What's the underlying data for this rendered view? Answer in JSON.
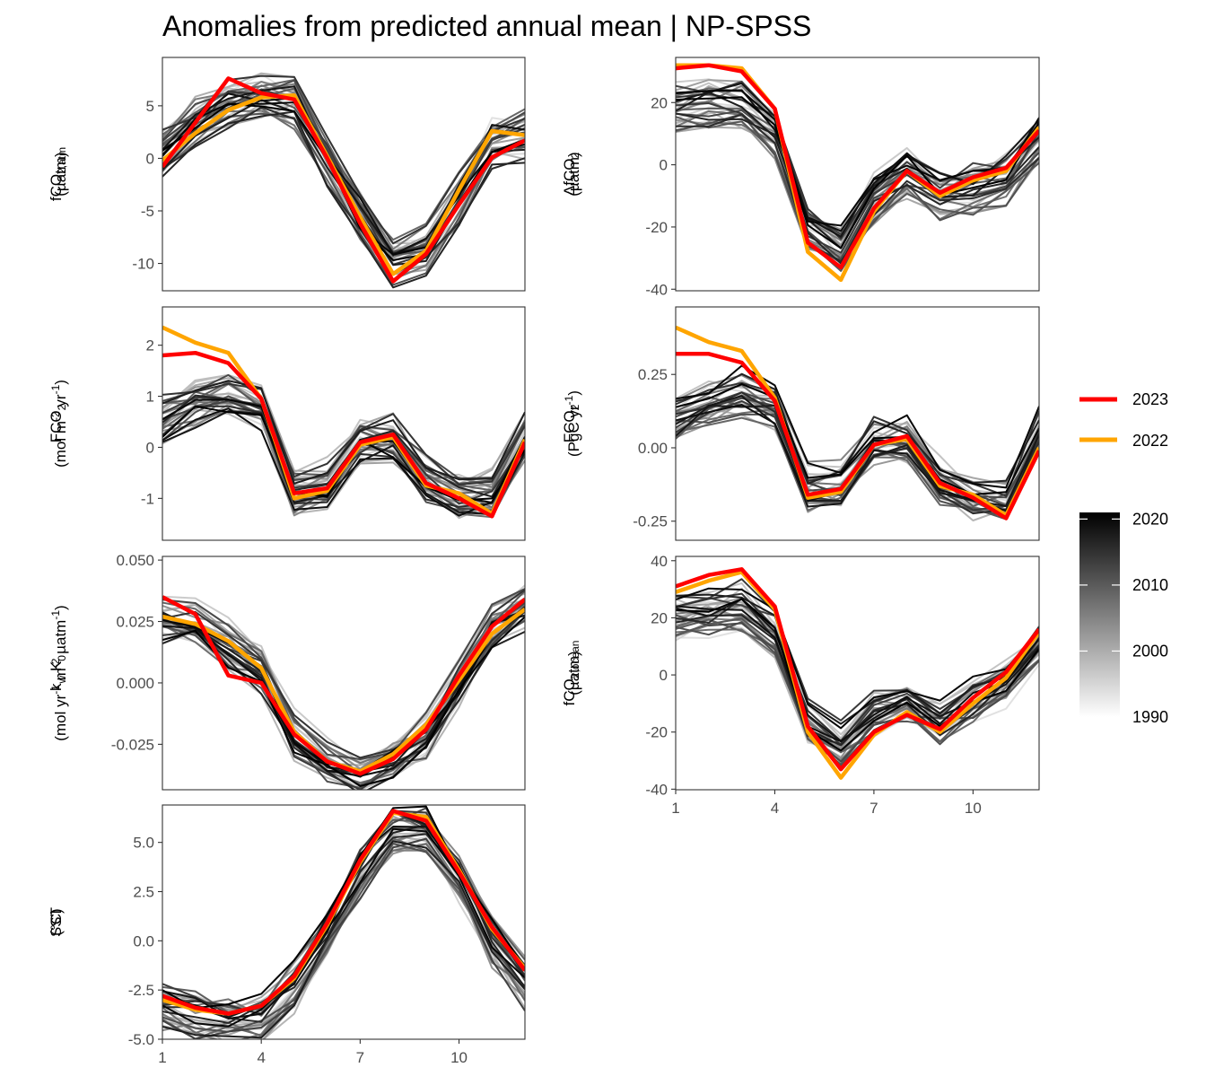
{
  "title": "Anomalies from predicted annual mean | NP-SPSS",
  "colors": {
    "y2023": "#ff0000",
    "y2022": "#ffa500",
    "gradient_dark": "#000000",
    "gradient_light": "#ffffff"
  },
  "legend_years": {
    "label_2023": "2023",
    "label_2022": "2022"
  },
  "colorbar": {
    "labels": [
      "2020",
      "2010",
      "2000",
      "1990"
    ],
    "range": [
      1990,
      2021
    ]
  },
  "chart_data": [
    {
      "id": "fco2atm",
      "type": "line",
      "ylabel": "fCO2,atm (µatm)",
      "ylabel_parts": {
        "line1_main": "fCO",
        "line1_sub": "2,atm",
        "line2": "(µatm)"
      },
      "x": [
        1,
        2,
        3,
        4,
        5,
        6,
        7,
        8,
        9,
        10,
        11,
        12
      ],
      "xticks": [
        "1",
        "4",
        "7",
        "10"
      ],
      "xlim": [
        1,
        12
      ],
      "yticks": [
        "5",
        "0",
        "-5",
        "-10"
      ],
      "ytick_values": [
        5,
        0,
        -5,
        -10
      ],
      "ylim": [
        -12.6,
        9.6
      ],
      "base": [
        0.6,
        3.2,
        5.1,
        5.8,
        5.4,
        0.0,
        -5.3,
        -9.6,
        -8.6,
        -3.8,
        1.6,
        2.2
      ],
      "y2023": [
        -0.8,
        3.4,
        7.6,
        6.2,
        5.6,
        0.0,
        -6.2,
        -11.7,
        -9.1,
        -4.4,
        0.1,
        1.7
      ],
      "y2022": [
        -0.2,
        2.4,
        4.6,
        5.8,
        6.0,
        0.2,
        -5.6,
        -11.0,
        -8.8,
        -3.0,
        2.6,
        2.2
      ]
    },
    {
      "id": "dfco2",
      "type": "line",
      "ylabel": "ΔfCO2 (µatm)",
      "ylabel_parts": {
        "line1_main": "ΔfCO",
        "line1_sub": "2",
        "line2": "(µatm)"
      },
      "x": [
        1,
        2,
        3,
        4,
        5,
        6,
        7,
        8,
        9,
        10,
        11,
        12
      ],
      "xticks": [
        "1",
        "4",
        "7",
        "10"
      ],
      "xlim": [
        1,
        12
      ],
      "yticks": [
        "20",
        "0",
        "-20",
        "-40"
      ],
      "ytick_values": [
        20,
        0,
        -20,
        -40
      ],
      "ylim": [
        -40.5,
        34.5
      ],
      "base": [
        18,
        20,
        19,
        10,
        -20,
        -27,
        -11,
        -3,
        -10,
        -8,
        -5,
        8
      ],
      "y2023": [
        31,
        32,
        30,
        18,
        -25,
        -33,
        -14,
        -2,
        -9,
        -4,
        -1,
        11
      ],
      "y2022": [
        32,
        32,
        31,
        18,
        -28,
        -37,
        -15,
        -2,
        -10,
        -5,
        -2,
        12
      ]
    },
    {
      "id": "fco2flux_m2",
      "type": "line",
      "ylabel": "FCO2 (mol m-2 yr-1)",
      "ylabel_parts": {
        "line1_main": "FCO",
        "line1_sub": "2",
        "line2": "(mol m-2 yr-1)"
      },
      "x": [
        1,
        2,
        3,
        4,
        5,
        6,
        7,
        8,
        9,
        10,
        11,
        12
      ],
      "xticks": [
        "1",
        "4",
        "7",
        "10"
      ],
      "xlim": [
        1,
        12
      ],
      "yticks": [
        "2",
        "1",
        "0",
        "-1"
      ],
      "ytick_values": [
        2,
        1,
        0,
        -1
      ],
      "ylim": [
        -1.82,
        2.75
      ],
      "base": [
        0.6,
        0.9,
        1.1,
        0.85,
        -0.8,
        -0.7,
        0.2,
        0.2,
        -0.6,
        -0.9,
        -0.9,
        0.3
      ],
      "y2023": [
        1.8,
        1.85,
        1.65,
        0.95,
        -0.9,
        -0.8,
        0.1,
        0.25,
        -0.7,
        -1.0,
        -1.35,
        0.1
      ],
      "y2022": [
        2.35,
        2.05,
        1.85,
        0.95,
        -1.0,
        -0.85,
        0.05,
        0.2,
        -0.75,
        -0.9,
        -1.3,
        0.15
      ]
    },
    {
      "id": "fco2flux_pg",
      "type": "line",
      "ylabel": "FCO2 (PgC yr-1)",
      "ylabel_parts": {
        "line1_main": "FCO",
        "line1_sub": "2",
        "line2": "(PgC yr-1)"
      },
      "x": [
        1,
        2,
        3,
        4,
        5,
        6,
        7,
        8,
        9,
        10,
        11,
        12
      ],
      "xticks": [
        "1",
        "4",
        "7",
        "10"
      ],
      "xlim": [
        1,
        12
      ],
      "yticks": [
        "0.25",
        "0.00",
        "-0.25"
      ],
      "ytick_values": [
        0.25,
        0.0,
        -0.25
      ],
      "ylim": [
        -0.315,
        0.48
      ],
      "base": [
        0.11,
        0.16,
        0.19,
        0.15,
        -0.13,
        -0.12,
        0.03,
        0.04,
        -0.1,
        -0.16,
        -0.17,
        0.05
      ],
      "y2023": [
        0.32,
        0.32,
        0.29,
        0.16,
        -0.16,
        -0.14,
        0.01,
        0.04,
        -0.12,
        -0.17,
        -0.24,
        -0.01
      ],
      "y2022": [
        0.41,
        0.36,
        0.33,
        0.17,
        -0.17,
        -0.15,
        0.01,
        0.03,
        -0.13,
        -0.16,
        -0.23,
        0.0
      ]
    },
    {
      "id": "kwk0",
      "type": "line",
      "ylabel": "kw K0 (mol yr-1 m-2 µatm-1)",
      "ylabel_parts": {
        "line1_main": "k",
        "line1_sub": "w",
        "line1_main2": " K",
        "line1_sub2": "0",
        "line2": "(mol yr-1 m-2 µatm-1)"
      },
      "x": [
        1,
        2,
        3,
        4,
        5,
        6,
        7,
        8,
        9,
        10,
        11,
        12
      ],
      "xticks": [
        "1",
        "4",
        "7",
        "10"
      ],
      "xlim": [
        1,
        12
      ],
      "yticks": [
        "0.050",
        "0.025",
        "0.000",
        "-0.025"
      ],
      "ytick_values": [
        0.05,
        0.025,
        0.0,
        -0.025
      ],
      "ylim": [
        -0.0435,
        0.0515
      ],
      "base": [
        0.026,
        0.024,
        0.015,
        0.006,
        -0.021,
        -0.031,
        -0.037,
        -0.031,
        -0.021,
        0.001,
        0.023,
        0.031
      ],
      "y2023": [
        0.035,
        0.028,
        0.003,
        0.0,
        -0.021,
        -0.032,
        -0.037,
        -0.031,
        -0.019,
        0.003,
        0.023,
        0.034
      ],
      "y2022": [
        0.027,
        0.024,
        0.017,
        0.006,
        -0.02,
        -0.032,
        -0.036,
        -0.029,
        -0.017,
        0.001,
        0.02,
        0.03
      ]
    },
    {
      "id": "fco2ocean",
      "type": "line",
      "ylabel": "fCO2,ocean (µatm)",
      "ylabel_parts": {
        "line1_main": "fCO",
        "line1_sub": "2,ocean",
        "line2": "(µatm)"
      },
      "x": [
        1,
        2,
        3,
        4,
        5,
        6,
        7,
        8,
        9,
        10,
        11,
        12
      ],
      "xticks": [
        "1",
        "4",
        "7",
        "10"
      ],
      "xlim": [
        1,
        12
      ],
      "yticks": [
        "40",
        "20",
        "0",
        "-20",
        "-40"
      ],
      "ytick_values": [
        40,
        20,
        0,
        -20,
        -40
      ],
      "ylim": [
        -40.2,
        41.5
      ],
      "base": [
        20,
        22,
        24,
        15,
        -17,
        -25,
        -13,
        -10,
        -16,
        -9,
        -2,
        12
      ],
      "y2023": [
        31,
        35,
        37,
        24,
        -18,
        -33,
        -20,
        -14,
        -19,
        -8,
        1,
        16
      ],
      "y2022": [
        29,
        33,
        36,
        23,
        -20,
        -36,
        -21,
        -13,
        -20,
        -10,
        -1,
        15
      ]
    },
    {
      "id": "sst",
      "type": "line",
      "ylabel": "SST (°C)",
      "ylabel_parts": {
        "line1_main": "SST",
        "line2": "(°C)"
      },
      "x": [
        1,
        2,
        3,
        4,
        5,
        6,
        7,
        8,
        9,
        10,
        11,
        12
      ],
      "xticks": [
        "1",
        "4",
        "7",
        "10"
      ],
      "xlim": [
        1,
        12
      ],
      "yticks": [
        "5.0",
        "2.5",
        "0.0",
        "-2.5",
        "-5.0"
      ],
      "ytick_values": [
        5.0,
        2.5,
        0.0,
        -2.5,
        -5.0
      ],
      "ylim": [
        -5.0,
        6.9
      ],
      "base": [
        -3.3,
        -3.8,
        -4.0,
        -3.8,
        -2.3,
        0.4,
        3.5,
        5.7,
        5.7,
        3.2,
        0.0,
        -2.1
      ],
      "y2023": [
        -2.8,
        -3.4,
        -3.7,
        -3.3,
        -1.8,
        0.9,
        4.1,
        6.6,
        6.1,
        3.5,
        0.7,
        -1.5
      ],
      "y2022": [
        -3.0,
        -3.5,
        -3.7,
        -3.3,
        -1.9,
        0.8,
        4.0,
        6.5,
        6.3,
        3.6,
        0.6,
        -1.4
      ]
    }
  ]
}
